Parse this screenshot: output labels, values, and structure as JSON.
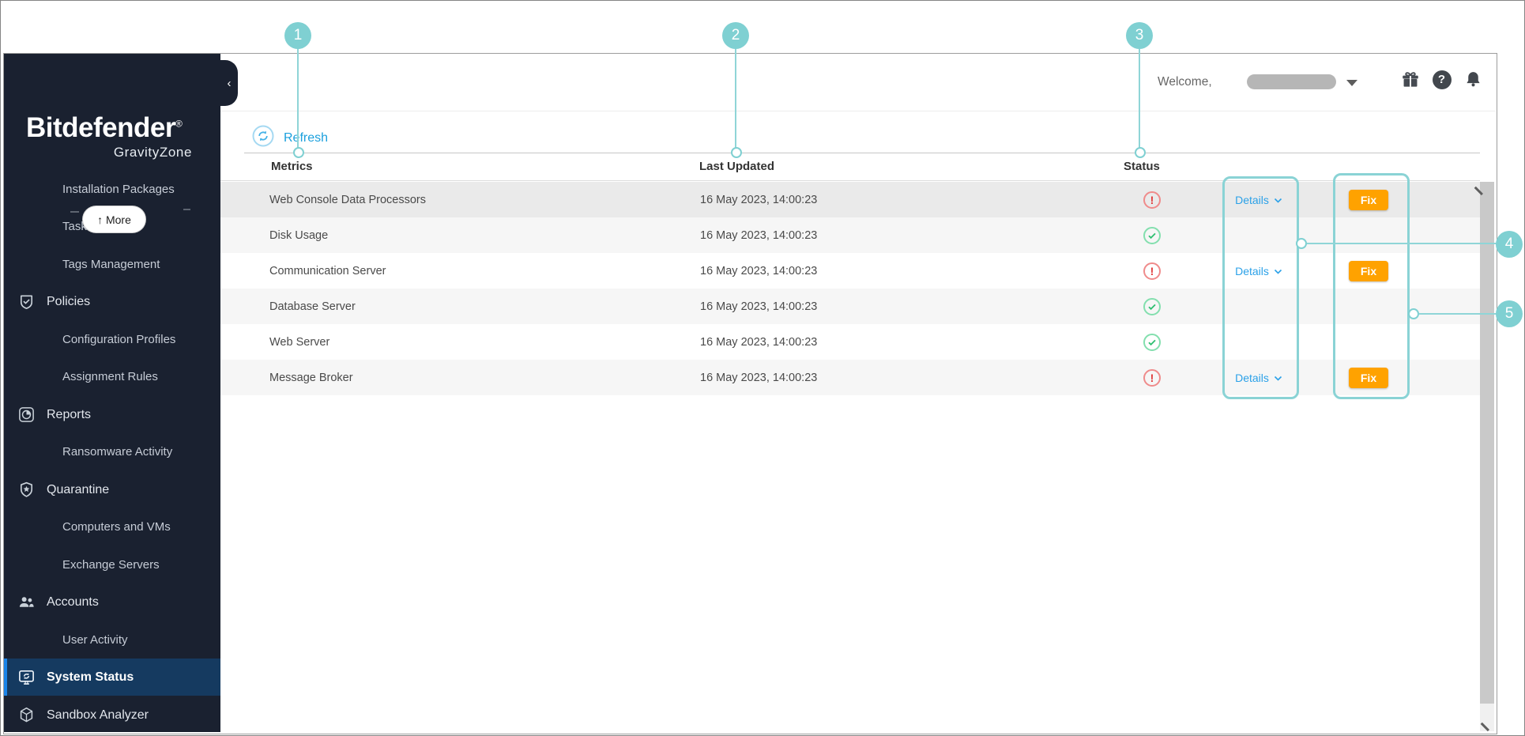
{
  "sidebar": {
    "brand": "Bitdefender",
    "brand_reg": "®",
    "product": "GravityZone",
    "more_label": "↑ More",
    "collapse_glyph": "‹",
    "items": [
      {
        "label": "Installation Packages",
        "type": "sub"
      },
      {
        "label": "Tasks",
        "type": "sub"
      },
      {
        "label": "Tags Management",
        "type": "sub"
      },
      {
        "label": "Policies",
        "type": "top",
        "icon": "shield-check"
      },
      {
        "label": "Configuration Profiles",
        "type": "sub"
      },
      {
        "label": "Assignment Rules",
        "type": "sub"
      },
      {
        "label": "Reports",
        "type": "top",
        "icon": "pie-chart"
      },
      {
        "label": "Ransomware Activity",
        "type": "sub"
      },
      {
        "label": "Quarantine",
        "type": "top",
        "icon": "shield-star"
      },
      {
        "label": "Computers and VMs",
        "type": "sub"
      },
      {
        "label": "Exchange Servers",
        "type": "sub"
      },
      {
        "label": "Accounts",
        "type": "top",
        "icon": "users"
      },
      {
        "label": "User Activity",
        "type": "sub"
      },
      {
        "label": "System Status",
        "type": "top",
        "icon": "monitor-sync",
        "selected": true
      },
      {
        "label": "Sandbox Analyzer",
        "type": "top",
        "icon": "cube"
      }
    ]
  },
  "header": {
    "welcome": "Welcome,",
    "icons": [
      "gift",
      "help",
      "notifications"
    ]
  },
  "toolbar": {
    "refresh_label": "Refresh"
  },
  "table": {
    "columns": [
      "Metrics",
      "Last Updated",
      "Status"
    ],
    "details_label": "Details",
    "fix_label": "Fix",
    "rows": [
      {
        "metric": "Web Console Data Processors",
        "updated": "16 May 2023, 14:00:23",
        "status": "error",
        "details": true,
        "fix": true
      },
      {
        "metric": "Disk Usage",
        "updated": "16 May 2023, 14:00:23",
        "status": "ok",
        "details": false,
        "fix": false
      },
      {
        "metric": "Communication Server",
        "updated": "16 May 2023, 14:00:23",
        "status": "error",
        "details": true,
        "fix": true
      },
      {
        "metric": "Database Server",
        "updated": "16 May 2023, 14:00:23",
        "status": "ok",
        "details": false,
        "fix": false
      },
      {
        "metric": "Web Server",
        "updated": "16 May 2023, 14:00:23",
        "status": "ok",
        "details": false,
        "fix": false
      },
      {
        "metric": "Message Broker",
        "updated": "16 May 2023, 14:00:23",
        "status": "error",
        "details": true,
        "fix": true
      }
    ]
  },
  "annotations": {
    "callouts": [
      "1",
      "2",
      "3",
      "4",
      "5"
    ],
    "accent_color": "#7fd0d2"
  },
  "colors": {
    "sidebar_bg": "#1a2130",
    "selected_bg": "#153a60",
    "selected_accent": "#1a84e8",
    "link_blue": "#2ba1e8",
    "fix_orange": "#ffa200",
    "error_red": "#e03a3a",
    "ok_green": "#2fbf71"
  }
}
